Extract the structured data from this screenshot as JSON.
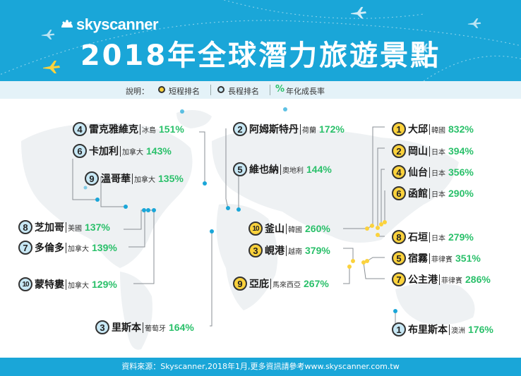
{
  "header": {
    "brand": "skyscanner",
    "title": "2018年全球潛力旅遊景點"
  },
  "legend": {
    "label": "說明：",
    "short": "短程排名",
    "long": "長程排名",
    "pct_symbol": "%",
    "pct_text": "年化成長率"
  },
  "colors": {
    "header_bg": "#1aa6d8",
    "short": "#fbd23c",
    "long": "#c8e8f5",
    "pct": "#2ac06a",
    "dot": "#1aa6d8"
  },
  "destinations": [
    {
      "rank": "4",
      "type": "long",
      "city": "雷克雅維克",
      "country": "冰島",
      "pct": "151%"
    },
    {
      "rank": "6",
      "type": "long",
      "city": "卡加利",
      "country": "加拿大",
      "pct": "143%"
    },
    {
      "rank": "9",
      "type": "long",
      "city": "溫哥華",
      "country": "加拿大",
      "pct": "135%"
    },
    {
      "rank": "8",
      "type": "long",
      "city": "芝加哥",
      "country": "美國",
      "pct": "137%"
    },
    {
      "rank": "7",
      "type": "long",
      "city": "多倫多",
      "country": "加拿大",
      "pct": "139%"
    },
    {
      "rank": "10",
      "type": "long",
      "city": "蒙特婁",
      "country": "加拿大",
      "pct": "129%"
    },
    {
      "rank": "3",
      "type": "long",
      "city": "里斯本",
      "country": "葡萄牙",
      "pct": "164%"
    },
    {
      "rank": "2",
      "type": "long",
      "city": "阿姆斯特丹",
      "country": "荷蘭",
      "pct": "172%"
    },
    {
      "rank": "5",
      "type": "long",
      "city": "維也納",
      "country": "奧地利",
      "pct": "144%"
    },
    {
      "rank": "10",
      "type": "short",
      "city": "釜山",
      "country": "韓國",
      "pct": "260%"
    },
    {
      "rank": "3",
      "type": "short",
      "city": "峴港",
      "country": "越南",
      "pct": "379%"
    },
    {
      "rank": "9",
      "type": "short",
      "city": "亞庇",
      "country": "馬來西亞",
      "pct": "267%"
    },
    {
      "rank": "1",
      "type": "short",
      "city": "大邱",
      "country": "韓國",
      "pct": "832%"
    },
    {
      "rank": "2",
      "type": "short",
      "city": "岡山",
      "country": "日本",
      "pct": "394%"
    },
    {
      "rank": "4",
      "type": "short",
      "city": "仙台",
      "country": "日本",
      "pct": "356%"
    },
    {
      "rank": "6",
      "type": "short",
      "city": "函館",
      "country": "日本",
      "pct": "290%"
    },
    {
      "rank": "8",
      "type": "short",
      "city": "石垣",
      "country": "日本",
      "pct": "279%"
    },
    {
      "rank": "5",
      "type": "short",
      "city": "宿霧",
      "country": "菲律賓",
      "pct": "351%"
    },
    {
      "rank": "7",
      "type": "short",
      "city": "公主港",
      "country": "菲律賓",
      "pct": "286%"
    },
    {
      "rank": "1",
      "type": "long",
      "city": "布里斯本",
      "country": "澳洲",
      "pct": "176%"
    }
  ],
  "footer": {
    "text": "資料來源：Skyscanner,2018年1月,更多資訊請參考www.skyscanner.com.tw"
  }
}
